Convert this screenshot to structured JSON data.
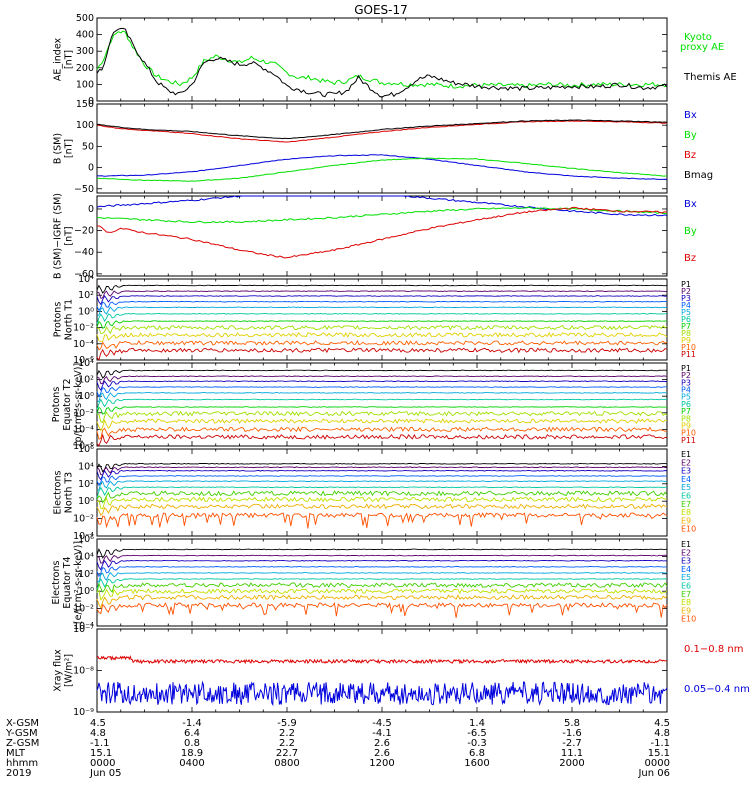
{
  "title": "GOES-17",
  "colors": {
    "black": "#000000",
    "green": "#00e000",
    "red": "#dd0000",
    "blue": "#0000dd",
    "p": [
      "#000000",
      "#5a006a",
      "#1a00c0",
      "#0060ff",
      "#00a8e0",
      "#00c8a0",
      "#00d000",
      "#a0e000",
      "#e0d000",
      "#ff6000",
      "#cc0000"
    ],
    "e": [
      "#000000",
      "#5a006a",
      "#1a00c0",
      "#0060ff",
      "#00a8e0",
      "#00c8a0",
      "#40d000",
      "#c0e000",
      "#f0b000",
      "#ff5000",
      "#cc0000"
    ]
  },
  "chart_data": [
    {
      "panel": "ae",
      "type": "line",
      "ylabel": [
        "AE_index",
        "[nT]"
      ],
      "ylim": [
        0,
        500
      ],
      "yticks": [
        "0",
        "100",
        "200",
        "300",
        "400",
        "500"
      ],
      "series": [
        {
          "name": "Kyoto proxy AE",
          "color": "green",
          "x": [
            0,
            0.3,
            0.6,
            0.9,
            1.2,
            1.5,
            2.0,
            2.5,
            3.0,
            3.5,
            4.0,
            4.5,
            5.0,
            5.5,
            6.0,
            6.5,
            7.0,
            7.5,
            8.0,
            8.5,
            9.0,
            9.5,
            10.0,
            10.5,
            11.0,
            11.5,
            12.0,
            12.5,
            13.0,
            14.0,
            15.0,
            16.0,
            17.0,
            18.0,
            19.0,
            20.0,
            21.0,
            22.0,
            23.0,
            24.0
          ],
          "y": [
            190,
            260,
            370,
            420,
            410,
            330,
            220,
            150,
            120,
            100,
            140,
            240,
            270,
            250,
            230,
            260,
            240,
            220,
            170,
            140,
            140,
            120,
            110,
            120,
            150,
            130,
            110,
            110,
            100,
            100,
            90,
            95,
            95,
            90,
            100,
            95,
            100,
            100,
            100,
            100
          ]
        },
        {
          "name": "Themis AE",
          "color": "black",
          "x": [
            0,
            0.3,
            0.6,
            0.9,
            1.2,
            1.5,
            2.0,
            2.5,
            3.0,
            3.5,
            4.0,
            4.5,
            5.0,
            5.5,
            6.0,
            6.5,
            7.0,
            7.5,
            8.0,
            8.5,
            9.0,
            9.5,
            10.0,
            10.5,
            11.0,
            11.5,
            12.0,
            12.5,
            13.0,
            13.5,
            14.0,
            15.0,
            16.0,
            17.0,
            18.0,
            19.0,
            20.0,
            21.0,
            22.0,
            23.0,
            24.0
          ],
          "y": [
            160,
            220,
            390,
            440,
            420,
            340,
            230,
            120,
            60,
            40,
            100,
            230,
            260,
            240,
            220,
            230,
            200,
            160,
            90,
            70,
            50,
            40,
            40,
            60,
            140,
            80,
            30,
            40,
            80,
            130,
            150,
            110,
            90,
            80,
            75,
            80,
            90,
            85,
            100,
            80,
            90
          ]
        }
      ]
    },
    {
      "panel": "bsm",
      "type": "line",
      "ylabel": [
        "B (SM)",
        "[nT]"
      ],
      "ylim": [
        -60,
        150
      ],
      "yticks": [
        "−50",
        "0",
        "50",
        "100",
        "150"
      ],
      "ytickvals": [
        -50,
        0,
        50,
        100,
        150
      ],
      "series": [
        {
          "name": "Bx",
          "color": "blue",
          "x": [
            0,
            2,
            4,
            6,
            8,
            10,
            12,
            14,
            16,
            18,
            20,
            22,
            24
          ],
          "y": [
            -20,
            -18,
            -10,
            5,
            20,
            28,
            30,
            20,
            5,
            -10,
            -20,
            -25,
            -28
          ]
        },
        {
          "name": "By",
          "color": "green",
          "x": [
            0,
            2,
            4,
            6,
            8,
            10,
            12,
            14,
            16,
            18,
            20,
            22,
            24
          ],
          "y": [
            -25,
            -30,
            -32,
            -25,
            -10,
            5,
            18,
            22,
            20,
            10,
            -2,
            -12,
            -20
          ]
        },
        {
          "name": "Bz",
          "color": "red",
          "x": [
            0,
            1,
            2,
            4,
            6,
            8,
            10,
            12,
            14,
            16,
            18,
            20,
            22,
            24
          ],
          "y": [
            100,
            92,
            88,
            80,
            68,
            60,
            72,
            85,
            95,
            102,
            108,
            110,
            108,
            105
          ]
        },
        {
          "name": "Bmag",
          "color": "black",
          "x": [
            0,
            1,
            2,
            4,
            6,
            8,
            10,
            12,
            14,
            16,
            18,
            20,
            22,
            24
          ],
          "y": [
            102,
            95,
            90,
            85,
            75,
            68,
            78,
            90,
            98,
            104,
            110,
            112,
            110,
            107
          ]
        }
      ]
    },
    {
      "panel": "bigrf",
      "type": "line",
      "ylabel": [
        "B (SM)−IGRF (SM)",
        "[nT]"
      ],
      "ylim": [
        -62,
        12
      ],
      "yticks": [
        "−60",
        "−40",
        "−20",
        "0"
      ],
      "ytickvals": [
        -60,
        -40,
        -20,
        0
      ],
      "series": [
        {
          "name": "Bx",
          "color": "blue",
          "x": [
            0,
            2,
            4,
            6,
            8,
            10,
            12,
            14,
            16,
            18,
            20,
            22,
            24
          ],
          "y": [
            2,
            5,
            8,
            12,
            15,
            16,
            14,
            10,
            6,
            2,
            -2,
            -5,
            -6
          ]
        },
        {
          "name": "By",
          "color": "green",
          "x": [
            0,
            2,
            4,
            6,
            8,
            10,
            12,
            14,
            16,
            18,
            20,
            22,
            24
          ],
          "y": [
            -8,
            -10,
            -12,
            -12,
            -10,
            -8,
            -5,
            -2,
            0,
            1,
            0,
            -2,
            -4
          ]
        },
        {
          "name": "Bz",
          "color": "red",
          "x": [
            0,
            0.5,
            1,
            2,
            4,
            6,
            7,
            8,
            10,
            12,
            14,
            16,
            18,
            20,
            22,
            24
          ],
          "y": [
            -15,
            -22,
            -18,
            -22,
            -28,
            -38,
            -42,
            -45,
            -38,
            -28,
            -18,
            -10,
            -3,
            1,
            -2,
            -3
          ]
        }
      ]
    },
    {
      "panel": "protons-t1",
      "type": "line",
      "log": true,
      "ylabel": [
        "Protons",
        "North T1"
      ],
      "ylim": [
        -6,
        4
      ],
      "yticks": [
        "10⁴",
        "10²",
        "10⁰",
        "10⁻²",
        "10⁻⁴",
        "10⁻⁶"
      ],
      "ytickvals": [
        4,
        2,
        0,
        -2,
        -4,
        -6
      ],
      "legend": [
        "P1",
        "P2",
        "P3",
        "P4",
        "P5",
        "P6",
        "P7",
        "P8",
        "P9",
        "P10",
        "P11"
      ],
      "levels": [
        3.2,
        2.5,
        1.9,
        1.2,
        0.5,
        -0.3,
        -1.2,
        -2.0,
        -2.9,
        -3.9,
        -4.8
      ]
    },
    {
      "panel": "protons-t2",
      "type": "line",
      "log": true,
      "ylabel": [
        "Protons",
        "Equator T2",
        "[p/(cm²-s-sr-keV)]"
      ],
      "ylim": [
        -6,
        4
      ],
      "yticks": [
        "10⁴",
        "10²",
        "10⁰",
        "10⁻²",
        "10⁻⁴",
        "10⁻⁶"
      ],
      "ytickvals": [
        4,
        2,
        0,
        -2,
        -4,
        -6
      ],
      "legend": [
        "P1",
        "P2",
        "P3",
        "P4",
        "P5",
        "P6",
        "P7",
        "P8",
        "P9",
        "P10",
        "P11"
      ],
      "levels": [
        3.1,
        2.4,
        1.8,
        1.1,
        0.4,
        -0.4,
        -1.3,
        -2.1,
        -3.0,
        -4.0,
        -4.9
      ]
    },
    {
      "panel": "electrons-t3",
      "type": "line",
      "log": true,
      "ylabel": [
        "Electrons",
        "North T3"
      ],
      "ylim": [
        -4,
        6
      ],
      "yticks": [
        "10⁶",
        "10⁴",
        "10²",
        "10⁰",
        "10⁻²",
        "10⁻⁴"
      ],
      "ytickvals": [
        6,
        4,
        2,
        0,
        -2,
        -4
      ],
      "legend": [
        "E1",
        "E2",
        "E3",
        "E4",
        "E5",
        "E6",
        "E7",
        "E8",
        "E9",
        "E10"
      ],
      "levels": [
        4.3,
        3.9,
        3.5,
        2.9,
        2.3,
        1.6,
        0.9,
        0.2,
        -0.6,
        -1.6
      ]
    },
    {
      "panel": "electrons-t4",
      "type": "line",
      "log": true,
      "ylabel": [
        "Electrons",
        "Equator T4",
        "[e/(cm²-s-sr-keV)]"
      ],
      "ylim": [
        -4,
        6
      ],
      "yticks": [
        "10⁶",
        "10⁴",
        "10²",
        "10⁰",
        "10⁻²",
        "10⁻⁴"
      ],
      "ytickvals": [
        6,
        4,
        2,
        0,
        -2,
        -4
      ],
      "legend": [
        "E1",
        "E2",
        "E3",
        "E4",
        "E5",
        "E6",
        "E7",
        "E8",
        "E9",
        "E10"
      ],
      "levels": [
        4.8,
        4.1,
        3.5,
        2.8,
        2.1,
        1.4,
        0.7,
        0.0,
        -0.7,
        -1.6
      ]
    },
    {
      "panel": "xray",
      "type": "line",
      "log": true,
      "ylabel": [
        "Xray flux",
        "[W/m²]"
      ],
      "ylim": [
        -9,
        -7
      ],
      "yticks": [
        "10⁻⁷",
        "10⁻⁸",
        "10⁻⁹"
      ],
      "ytickvals": [
        -7,
        -8,
        -9
      ],
      "series": [
        {
          "name": "0.1−0.8 nm",
          "color": "red",
          "level": -7.78
        },
        {
          "name": "0.05−0.4 nm",
          "color": "blue",
          "level": -8.55
        }
      ]
    }
  ],
  "ae_legend": [
    "Kyoto",
    "proxy AE",
    "Themis AE"
  ],
  "b_legend": [
    "Bx",
    "By",
    "Bz",
    "Bmag"
  ],
  "bigrf_legend": [
    "Bx",
    "By",
    "Bz"
  ],
  "xray_legend": [
    "0.1−0.8 nm",
    "0.05−0.4 nm"
  ],
  "ephemeris": {
    "labels": [
      "X-GSM",
      "Y-GSM",
      "Z-GSM",
      "MLT",
      "hhmm",
      "2019"
    ],
    "columns": [
      [
        "4.5",
        "4.8",
        "-1.1",
        "15.1",
        "0000",
        "Jun 05"
      ],
      [
        "-1.4",
        "6.4",
        "0.8",
        "18.9",
        "0400",
        ""
      ],
      [
        "-5.9",
        "2.2",
        "2.2",
        "22.7",
        "0800",
        ""
      ],
      [
        "-4.5",
        "-4.1",
        "2.6",
        "2.6",
        "1200",
        ""
      ],
      [
        "1.4",
        "-6.5",
        "-0.3",
        "6.8",
        "1600",
        ""
      ],
      [
        "5.8",
        "-1.6",
        "-2.7",
        "11.1",
        "2000",
        ""
      ],
      [
        "4.5",
        "4.8",
        "-1.1",
        "15.1",
        "0000",
        "Jun 06"
      ]
    ]
  }
}
